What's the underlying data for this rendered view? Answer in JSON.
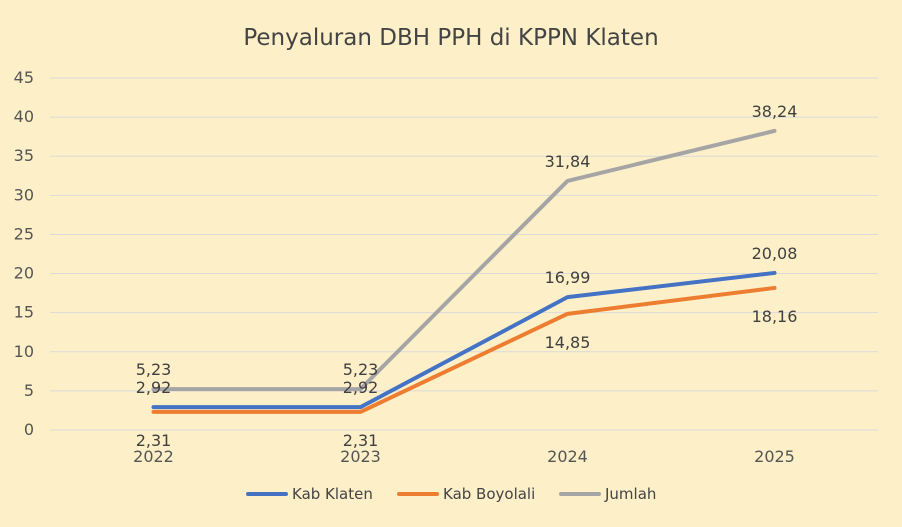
{
  "chart_data": {
    "type": "line",
    "title": "Penyaluran DBH PPH di KPPN Klaten",
    "xlabel": "",
    "ylabel": "",
    "categories": [
      "2022",
      "2023",
      "2024",
      "2025"
    ],
    "ylim": [
      0,
      45
    ],
    "yticks": [
      "0",
      "5",
      "10",
      "15",
      "20",
      "25",
      "30",
      "35",
      "40",
      "45"
    ],
    "grid": true,
    "legend_position": "bottom",
    "series": [
      {
        "name": "Kab Klaten",
        "color": "#4472C4",
        "values": [
          2.92,
          2.92,
          16.99,
          20.08
        ],
        "labels": [
          "2,92",
          "2,92",
          "16,99",
          "20,08"
        ],
        "label_pos": [
          "above",
          "above",
          "above",
          "above"
        ]
      },
      {
        "name": "Kab Boyolali",
        "color": "#ED7D31",
        "values": [
          2.31,
          2.31,
          14.85,
          18.16
        ],
        "labels": [
          "2,31",
          "2,31",
          "14,85",
          "18,16"
        ],
        "label_pos": [
          "below",
          "below",
          "below",
          "below"
        ]
      },
      {
        "name": "Jumlah",
        "color": "#A5A5A5",
        "values": [
          5.23,
          5.23,
          31.84,
          38.24
        ],
        "labels": [
          "5,23",
          "5,23",
          "31,84",
          "38,24"
        ],
        "label_pos": [
          "above",
          "above",
          "above",
          "above"
        ]
      }
    ]
  }
}
